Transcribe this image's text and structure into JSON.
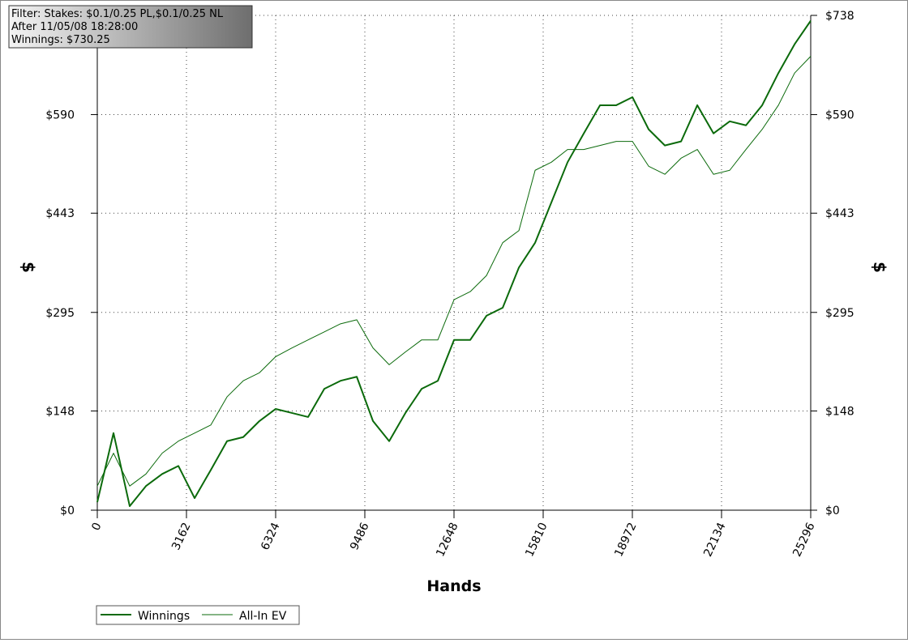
{
  "chart_data": {
    "type": "line",
    "annotations": [
      "Filter: Stakes: $0.1/0.25 PL,$0.1/0.25 NL",
      "After 11/05/08 18:28:00",
      "Winnings: $730.25"
    ],
    "xlabel": "Hands",
    "ylabel": "$",
    "y2label": "$",
    "x": [
      0,
      575,
      1150,
      1725,
      2300,
      2875,
      3450,
      4025,
      4600,
      5175,
      5750,
      6325,
      6900,
      7475,
      8050,
      8625,
      9200,
      9775,
      10350,
      10925,
      11500,
      12075,
      12650,
      13225,
      13800,
      14375,
      14950,
      15525,
      16100,
      16675,
      17250,
      17825,
      18400,
      18975,
      19550,
      20125,
      20700,
      21275,
      21850,
      22425,
      23000,
      23575,
      24150,
      24725,
      25296
    ],
    "series": [
      {
        "name": "Winnings",
        "color": "#0b6a0b",
        "line_width": 2,
        "values": [
          12,
          115,
          6,
          36,
          54,
          66,
          18,
          60,
          103,
          109,
          133,
          151,
          145,
          139,
          181,
          193,
          199,
          133,
          103,
          145,
          181,
          193,
          254,
          254,
          290,
          302,
          362,
          399,
          459,
          519,
          562,
          604,
          604,
          616,
          568,
          544,
          550,
          604,
          562,
          580,
          574,
          604,
          652,
          695,
          730
        ]
      },
      {
        "name": "All-In EV",
        "color": "#0b6a0b",
        "line_width": 1,
        "values": [
          36,
          85,
          36,
          54,
          85,
          103,
          115,
          127,
          169,
          193,
          205,
          229,
          242,
          254,
          266,
          278,
          284,
          242,
          217,
          236,
          254,
          254,
          314,
          326,
          350,
          399,
          417,
          507,
          519,
          538,
          538,
          544,
          550,
          550,
          513,
          501,
          525,
          538,
          501,
          507,
          538,
          568,
          604,
          652,
          677
        ]
      }
    ],
    "xlim": [
      0,
      25296
    ],
    "xticks": [
      0,
      3162,
      6324,
      9486,
      12648,
      15810,
      18972,
      22134,
      25296
    ],
    "ylim": [
      0,
      738
    ],
    "yticks": [
      {
        "value": 0,
        "label": "$0"
      },
      {
        "value": 148,
        "label": "$148"
      },
      {
        "value": 295,
        "label": "$295"
      },
      {
        "value": 443,
        "label": "$443"
      },
      {
        "value": 590,
        "label": "$590"
      },
      {
        "value": 738,
        "label": "$738"
      }
    ],
    "grid": true
  }
}
